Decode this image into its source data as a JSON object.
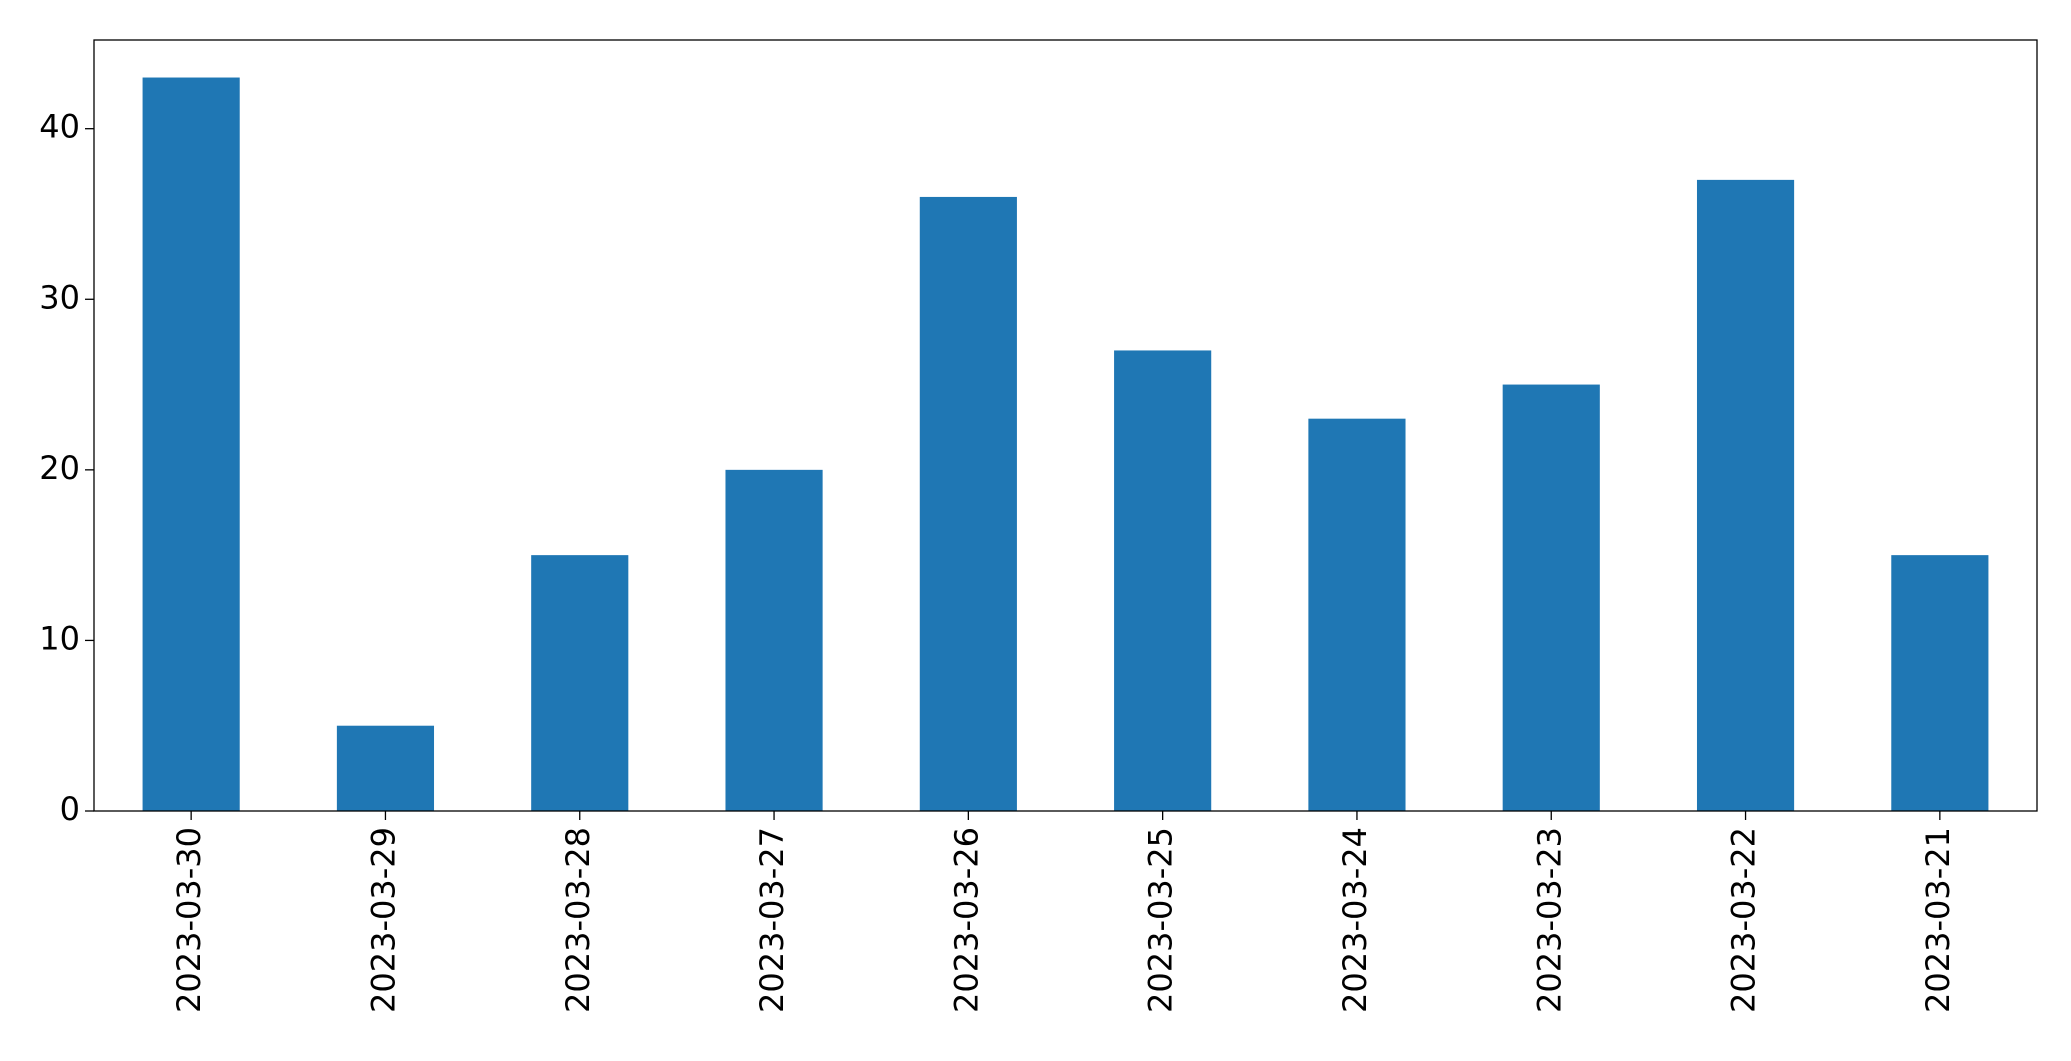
{
  "chart_data": {
    "type": "bar",
    "categories": [
      "2023-03-30",
      "2023-03-29",
      "2023-03-28",
      "2023-03-27",
      "2023-03-26",
      "2023-03-25",
      "2023-03-24",
      "2023-03-23",
      "2023-03-22",
      "2023-03-21"
    ],
    "values": [
      43,
      5,
      15,
      20,
      36,
      27,
      23,
      25,
      37,
      15
    ],
    "color": "#1f77b4",
    "ylim": [
      0,
      45.2
    ],
    "yticks": [
      0,
      10,
      20,
      30,
      40
    ],
    "grid": false
  }
}
